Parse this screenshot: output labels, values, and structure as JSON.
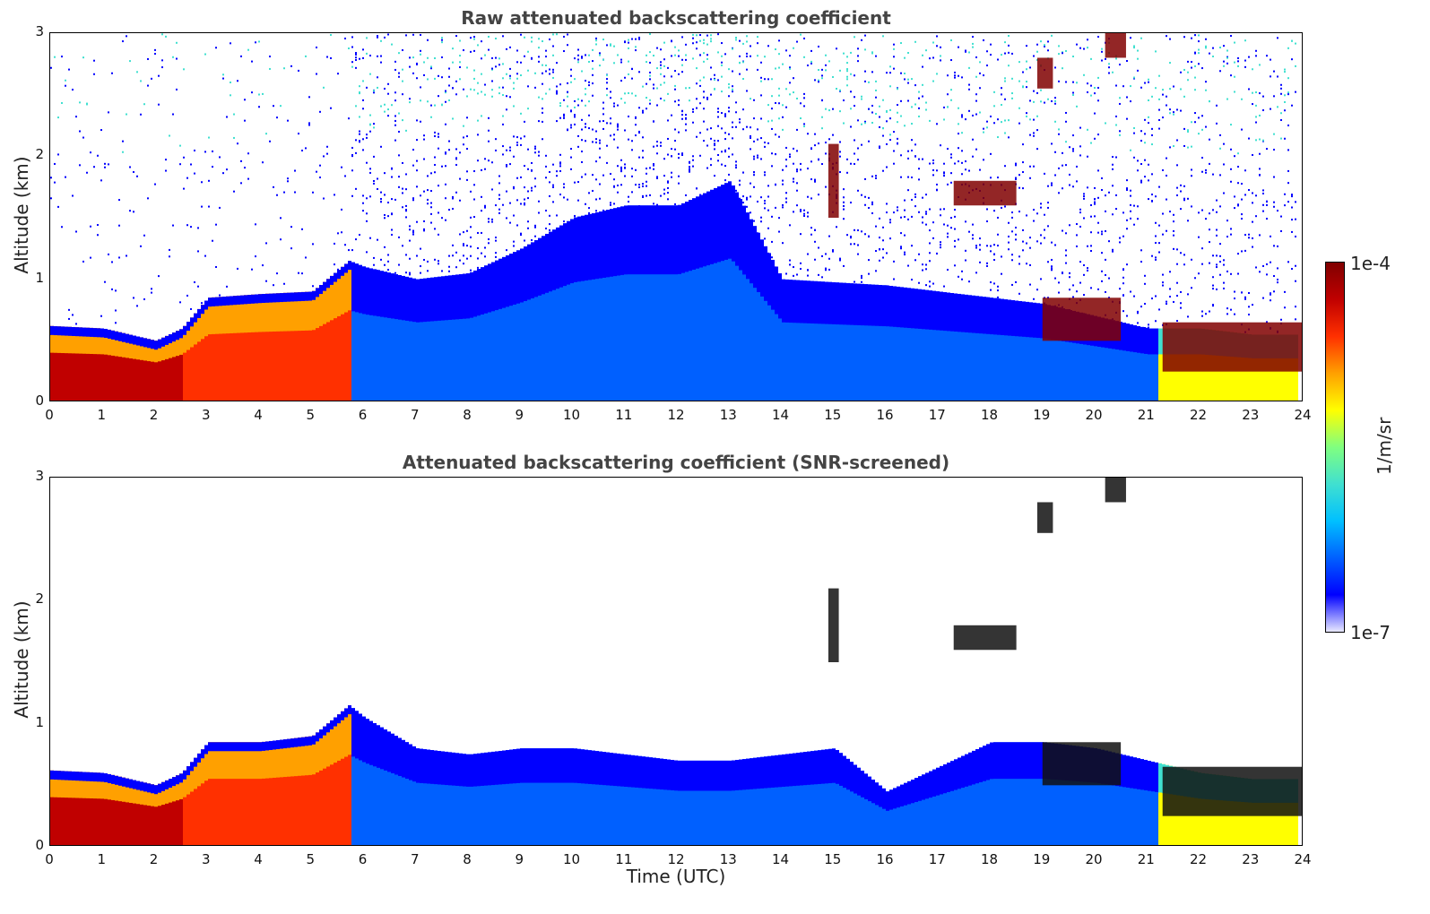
{
  "chart_data": [
    {
      "type": "heatmap",
      "title": "Raw attenuated backscattering coefficient",
      "xlabel": "",
      "ylabel": "Altitude (km)",
      "xlim": [
        0,
        24
      ],
      "ylim": [
        0,
        3
      ],
      "xticks": [
        "0",
        "1",
        "2",
        "3",
        "4",
        "5",
        "6",
        "7",
        "8",
        "9",
        "10",
        "11",
        "12",
        "13",
        "14",
        "15",
        "16",
        "17",
        "18",
        "19",
        "20",
        "21",
        "22",
        "23",
        "24"
      ],
      "yticks": [
        "0",
        "1",
        "2",
        "3"
      ],
      "boundary_layer_top_km": [
        [
          0,
          0.62
        ],
        [
          1,
          0.6
        ],
        [
          2,
          0.5
        ],
        [
          2.5,
          0.6
        ],
        [
          3,
          0.85
        ],
        [
          4,
          0.88
        ],
        [
          5,
          0.9
        ],
        [
          5.7,
          1.15
        ],
        [
          6,
          1.1
        ],
        [
          7,
          1.0
        ],
        [
          8,
          1.05
        ],
        [
          9,
          1.25
        ],
        [
          10,
          1.5
        ],
        [
          11,
          1.6
        ],
        [
          12,
          1.6
        ],
        [
          13,
          1.8
        ],
        [
          14,
          1.0
        ],
        [
          16,
          0.95
        ],
        [
          17,
          0.9
        ],
        [
          18,
          0.85
        ],
        [
          19,
          0.8
        ],
        [
          20,
          0.7
        ],
        [
          21,
          0.6
        ],
        [
          22,
          0.6
        ],
        [
          23,
          0.55
        ],
        [
          24,
          0.55
        ]
      ],
      "features": [
        {
          "kind": "aerosol_layer",
          "x": [
            0,
            5.7
          ],
          "y": [
            0,
            0.9
          ]
        },
        {
          "kind": "cloud",
          "x": [
            17.3,
            18.5
          ],
          "y": [
            1.6,
            1.8
          ]
        },
        {
          "kind": "cloud",
          "x": [
            18.9,
            19.2
          ],
          "y": [
            2.55,
            2.8
          ]
        },
        {
          "kind": "cloud",
          "x": [
            20.2,
            20.6
          ],
          "y": [
            2.8,
            3.0
          ]
        },
        {
          "kind": "cloud",
          "x": [
            14.9,
            15.1
          ],
          "y": [
            1.5,
            2.1
          ]
        },
        {
          "kind": "cloud",
          "x": [
            19.0,
            20.5
          ],
          "y": [
            0.5,
            0.85
          ]
        },
        {
          "kind": "cloud",
          "x": [
            21.3,
            24
          ],
          "y": [
            0.25,
            0.65
          ]
        }
      ]
    },
    {
      "type": "heatmap",
      "title": "Attenuated backscattering coefficient (SNR-screened)",
      "xlabel": "Time (UTC)",
      "ylabel": "Altitude (km)",
      "xlim": [
        0,
        24
      ],
      "ylim": [
        0,
        3
      ],
      "xticks": [
        "0",
        "1",
        "2",
        "3",
        "4",
        "5",
        "6",
        "7",
        "8",
        "9",
        "10",
        "11",
        "12",
        "13",
        "14",
        "15",
        "16",
        "17",
        "18",
        "19",
        "20",
        "21",
        "22",
        "23",
        "24"
      ],
      "yticks": [
        "0",
        "1",
        "2",
        "3"
      ],
      "screened_top_km": [
        [
          0,
          0.62
        ],
        [
          1,
          0.6
        ],
        [
          2,
          0.5
        ],
        [
          2.5,
          0.6
        ],
        [
          3,
          0.85
        ],
        [
          4,
          0.85
        ],
        [
          5,
          0.9
        ],
        [
          5.7,
          1.15
        ],
        [
          6,
          1.05
        ],
        [
          7,
          0.8
        ],
        [
          8,
          0.75
        ],
        [
          9,
          0.8
        ],
        [
          10,
          0.8
        ],
        [
          11,
          0.75
        ],
        [
          12,
          0.7
        ],
        [
          13,
          0.7
        ],
        [
          14,
          0.75
        ],
        [
          15,
          0.8
        ],
        [
          16,
          0.45
        ],
        [
          17,
          0.65
        ],
        [
          18,
          0.85
        ],
        [
          19,
          0.85
        ],
        [
          20,
          0.8
        ],
        [
          21,
          0.7
        ],
        [
          22,
          0.6
        ],
        [
          23,
          0.55
        ],
        [
          24,
          0.55
        ]
      ]
    }
  ],
  "colorbar": {
    "label": "1/m/sr",
    "max_label": "1e-4",
    "min_label": "1e-7",
    "colors": [
      "#e8e8ff",
      "#0000ff",
      "#0060ff",
      "#00c0ff",
      "#40e0d0",
      "#80ff80",
      "#ffff00",
      "#ffa000",
      "#ff3000",
      "#c00000",
      "#800000"
    ]
  }
}
